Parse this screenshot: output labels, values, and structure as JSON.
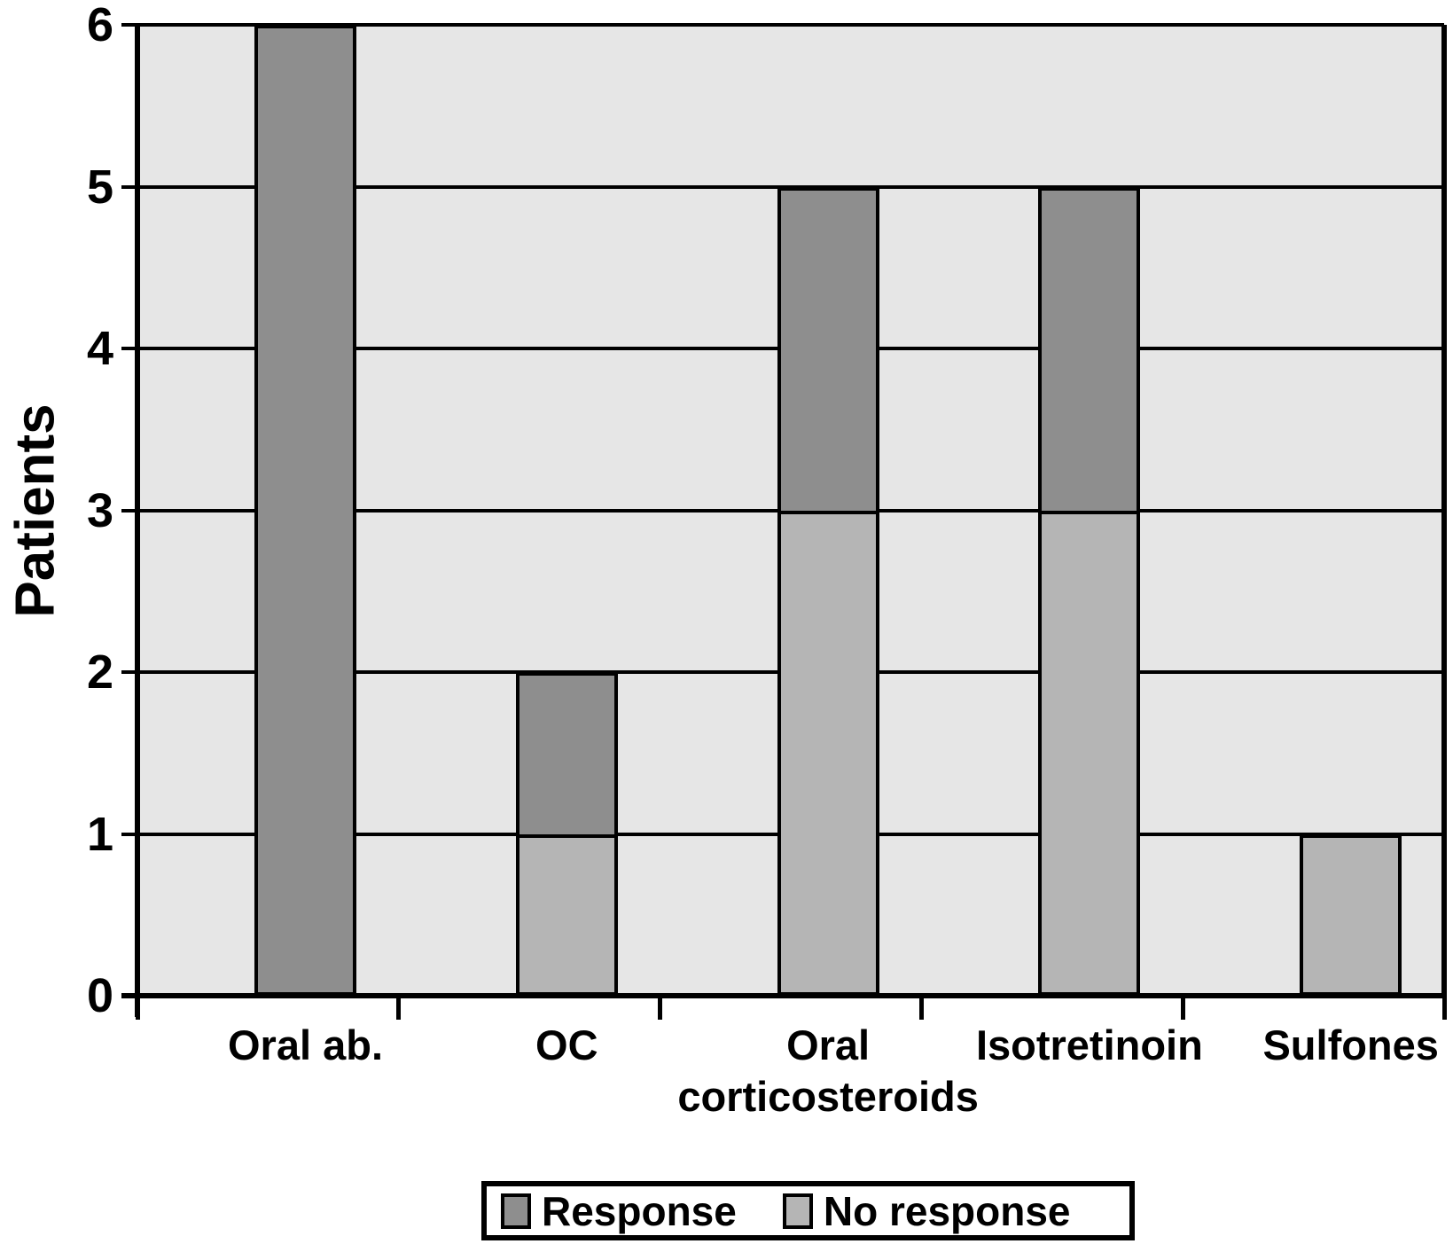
{
  "chart_data": {
    "type": "bar",
    "subtype": "stacked-vertical",
    "title": "",
    "xlabel": "",
    "ylabel": "Patients",
    "ylim": [
      0,
      6
    ],
    "yticks": [
      0,
      1,
      2,
      3,
      4,
      5,
      6
    ],
    "grid": true,
    "plot_background": "#e6e6e6",
    "axis_color": "#000000",
    "categories": [
      "Oral ab.",
      "OC",
      "Oral\ncorticosteroids",
      "Isotretinoin",
      "Sulfones"
    ],
    "series": [
      {
        "name": "No response",
        "color": "#b5b5b5",
        "values": [
          0,
          1,
          3,
          3,
          1
        ]
      },
      {
        "name": "Response",
        "color": "#8e8e8e",
        "values": [
          6,
          1,
          2,
          2,
          0
        ]
      }
    ],
    "totals": [
      6,
      2,
      5,
      5,
      1
    ],
    "legend": {
      "position": "bottom",
      "entries": [
        {
          "label": "Response",
          "color": "#8e8e8e"
        },
        {
          "label": "No response",
          "color": "#b5b5b5"
        }
      ]
    }
  }
}
